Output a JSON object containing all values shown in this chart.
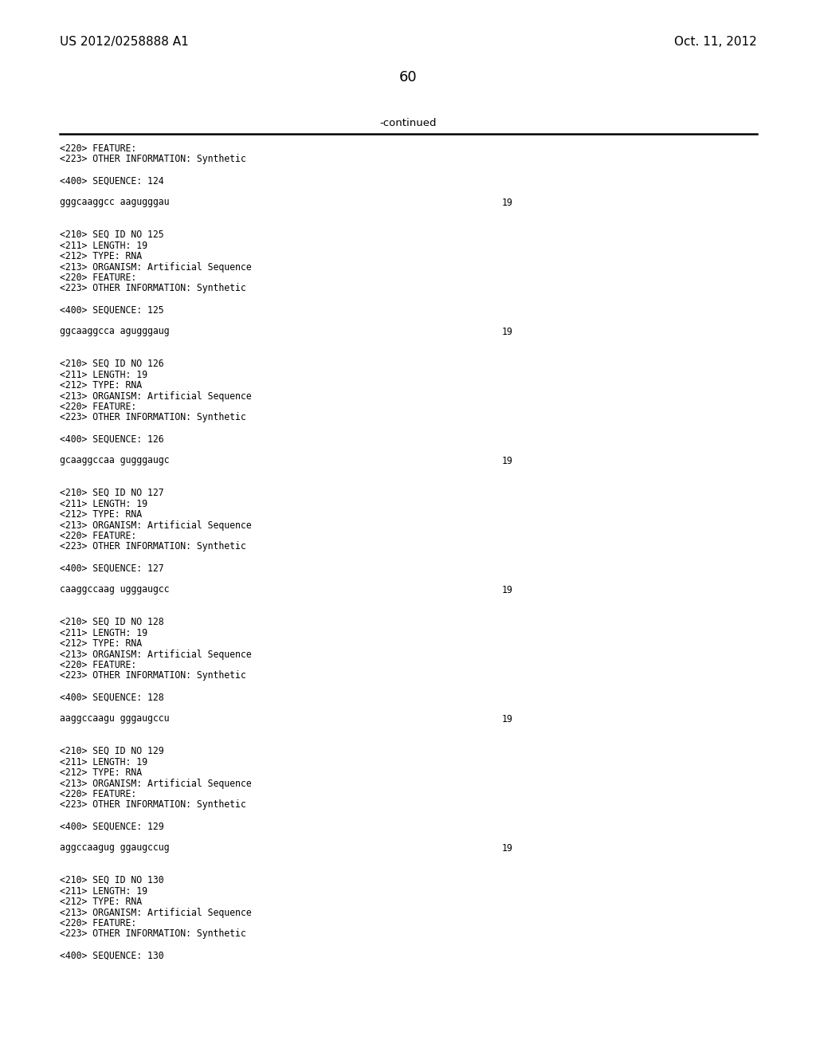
{
  "bg_color": "#ffffff",
  "header_left": "US 2012/0258888 A1",
  "header_right": "Oct. 11, 2012",
  "page_number": "60",
  "continued_label": "-continued",
  "content_blocks": [
    {
      "lines": [
        {
          "text": "<220> FEATURE:",
          "indent": false
        },
        {
          "text": "<223> OTHER INFORMATION: Synthetic",
          "indent": false
        }
      ]
    },
    {
      "lines": [
        {
          "text": "<400> SEQUENCE: 124",
          "indent": false
        }
      ]
    },
    {
      "lines": [
        {
          "text": "gggcaaggcc aagugggau",
          "indent": false,
          "num": "19"
        }
      ]
    },
    {
      "lines": [
        {
          "text": "<210> SEQ ID NO 125",
          "indent": false
        },
        {
          "text": "<211> LENGTH: 19",
          "indent": false
        },
        {
          "text": "<212> TYPE: RNA",
          "indent": false
        },
        {
          "text": "<213> ORGANISM: Artificial Sequence",
          "indent": false
        },
        {
          "text": "<220> FEATURE:",
          "indent": false
        },
        {
          "text": "<223> OTHER INFORMATION: Synthetic",
          "indent": false
        }
      ]
    },
    {
      "lines": [
        {
          "text": "<400> SEQUENCE: 125",
          "indent": false
        }
      ]
    },
    {
      "lines": [
        {
          "text": "ggcaaggcca agugggaug",
          "indent": false,
          "num": "19"
        }
      ]
    },
    {
      "lines": [
        {
          "text": "<210> SEQ ID NO 126",
          "indent": false
        },
        {
          "text": "<211> LENGTH: 19",
          "indent": false
        },
        {
          "text": "<212> TYPE: RNA",
          "indent": false
        },
        {
          "text": "<213> ORGANISM: Artificial Sequence",
          "indent": false
        },
        {
          "text": "<220> FEATURE:",
          "indent": false
        },
        {
          "text": "<223> OTHER INFORMATION: Synthetic",
          "indent": false
        }
      ]
    },
    {
      "lines": [
        {
          "text": "<400> SEQUENCE: 126",
          "indent": false
        }
      ]
    },
    {
      "lines": [
        {
          "text": "gcaaggccaa gugggaugc",
          "indent": false,
          "num": "19"
        }
      ]
    },
    {
      "lines": [
        {
          "text": "<210> SEQ ID NO 127",
          "indent": false
        },
        {
          "text": "<211> LENGTH: 19",
          "indent": false
        },
        {
          "text": "<212> TYPE: RNA",
          "indent": false
        },
        {
          "text": "<213> ORGANISM: Artificial Sequence",
          "indent": false
        },
        {
          "text": "<220> FEATURE:",
          "indent": false
        },
        {
          "text": "<223> OTHER INFORMATION: Synthetic",
          "indent": false
        }
      ]
    },
    {
      "lines": [
        {
          "text": "<400> SEQUENCE: 127",
          "indent": false
        }
      ]
    },
    {
      "lines": [
        {
          "text": "caaggccaag ugggaugcc",
          "indent": false,
          "num": "19"
        }
      ]
    },
    {
      "lines": [
        {
          "text": "<210> SEQ ID NO 128",
          "indent": false
        },
        {
          "text": "<211> LENGTH: 19",
          "indent": false
        },
        {
          "text": "<212> TYPE: RNA",
          "indent": false
        },
        {
          "text": "<213> ORGANISM: Artificial Sequence",
          "indent": false
        },
        {
          "text": "<220> FEATURE:",
          "indent": false
        },
        {
          "text": "<223> OTHER INFORMATION: Synthetic",
          "indent": false
        }
      ]
    },
    {
      "lines": [
        {
          "text": "<400> SEQUENCE: 128",
          "indent": false
        }
      ]
    },
    {
      "lines": [
        {
          "text": "aaggccaagu gggaugccu",
          "indent": false,
          "num": "19"
        }
      ]
    },
    {
      "lines": [
        {
          "text": "<210> SEQ ID NO 129",
          "indent": false
        },
        {
          "text": "<211> LENGTH: 19",
          "indent": false
        },
        {
          "text": "<212> TYPE: RNA",
          "indent": false
        },
        {
          "text": "<213> ORGANISM: Artificial Sequence",
          "indent": false
        },
        {
          "text": "<220> FEATURE:",
          "indent": false
        },
        {
          "text": "<223> OTHER INFORMATION: Synthetic",
          "indent": false
        }
      ]
    },
    {
      "lines": [
        {
          "text": "<400> SEQUENCE: 129",
          "indent": false
        }
      ]
    },
    {
      "lines": [
        {
          "text": "aggccaagug ggaugccug",
          "indent": false,
          "num": "19"
        }
      ]
    },
    {
      "lines": [
        {
          "text": "<210> SEQ ID NO 130",
          "indent": false
        },
        {
          "text": "<211> LENGTH: 19",
          "indent": false
        },
        {
          "text": "<212> TYPE: RNA",
          "indent": false
        },
        {
          "text": "<213> ORGANISM: Artificial Sequence",
          "indent": false
        },
        {
          "text": "<220> FEATURE:",
          "indent": false
        },
        {
          "text": "<223> OTHER INFORMATION: Synthetic",
          "indent": false
        }
      ]
    },
    {
      "lines": [
        {
          "text": "<400> SEQUENCE: 130",
          "indent": false
        }
      ]
    }
  ]
}
